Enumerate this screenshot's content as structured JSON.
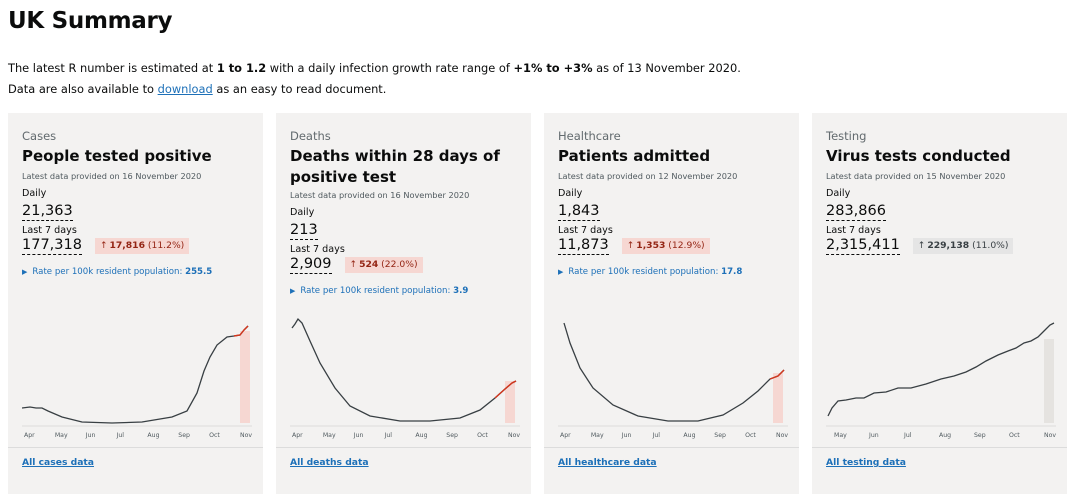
{
  "page": {
    "title": "UK Summary",
    "intro_prefix": "The latest R number is estimated at ",
    "r_range": "1 to 1.2",
    "intro_mid": " with a daily infection growth rate range of ",
    "growth_range": "+1% to +3%",
    "intro_suffix": " as of 13 November 2020.",
    "line2_prefix": "Data are also available to ",
    "download_link": "download",
    "line2_suffix": " as an easy to read document."
  },
  "cards": [
    {
      "category": "Cases",
      "title": "People tested positive",
      "latest": "Latest data provided on 16 November 2020",
      "daily_label": "Daily",
      "daily_value": "21,363",
      "week_label": "Last 7 days",
      "week_value": "177,318",
      "change_arrow": "↑",
      "change_value": "17,816",
      "change_pct": "(11.2%)",
      "rate_label": "Rate per 100k resident population: ",
      "rate_value": "255.5",
      "months": [
        "Apr",
        "May",
        "Jun",
        "Jul",
        "Aug",
        "Sep",
        "Oct",
        "Nov"
      ],
      "link": "All cases data",
      "trend": "up"
    },
    {
      "category": "Deaths",
      "title": "Deaths within 28 days of positive test",
      "latest": "Latest data provided on 16 November 2020",
      "daily_label": "Daily",
      "daily_value": "213",
      "week_label": "Last 7 days",
      "week_value": "2,909",
      "change_arrow": "↑",
      "change_value": "524",
      "change_pct": "(22.0%)",
      "rate_label": "Rate per 100k resident population: ",
      "rate_value": "3.9",
      "months": [
        "Apr",
        "May",
        "Jun",
        "Jul",
        "Aug",
        "Sep",
        "Oct",
        "Nov"
      ],
      "link": "All deaths data",
      "trend": "up"
    },
    {
      "category": "Healthcare",
      "title": "Patients admitted",
      "latest": "Latest data provided on 12 November 2020",
      "daily_label": "Daily",
      "daily_value": "1,843",
      "week_label": "Last 7 days",
      "week_value": "11,873",
      "change_arrow": "↑",
      "change_value": "1,353",
      "change_pct": "(12.9%)",
      "rate_label": "Rate per 100k resident population: ",
      "rate_value": "17.8",
      "months": [
        "Apr",
        "May",
        "Jun",
        "Jul",
        "Aug",
        "Sep",
        "Oct",
        "Nov"
      ],
      "link": "All healthcare data",
      "trend": "up"
    },
    {
      "category": "Testing",
      "title": "Virus tests conducted",
      "latest": "Latest data provided on 15 November 2020",
      "daily_label": "Daily",
      "daily_value": "283,866",
      "week_label": "Last 7 days",
      "week_value": "2,315,411",
      "change_arrow": "↑",
      "change_value": "229,138",
      "change_pct": "(11.0%)",
      "rate_label": "",
      "rate_value": "",
      "months": [
        "May",
        "Jun",
        "Jul",
        "Aug",
        "Sep",
        "Oct",
        "Nov"
      ],
      "link": "All testing data",
      "trend": "neutral"
    }
  ],
  "colors": {
    "link": "#1d70b8",
    "negative_text": "#942514",
    "negative_bg": "#f6d7d2",
    "neutral_bg": "#e5e5e5",
    "card_bg": "#f3f2f1",
    "line": "#383f43",
    "highlight_red": "#d4351c"
  }
}
